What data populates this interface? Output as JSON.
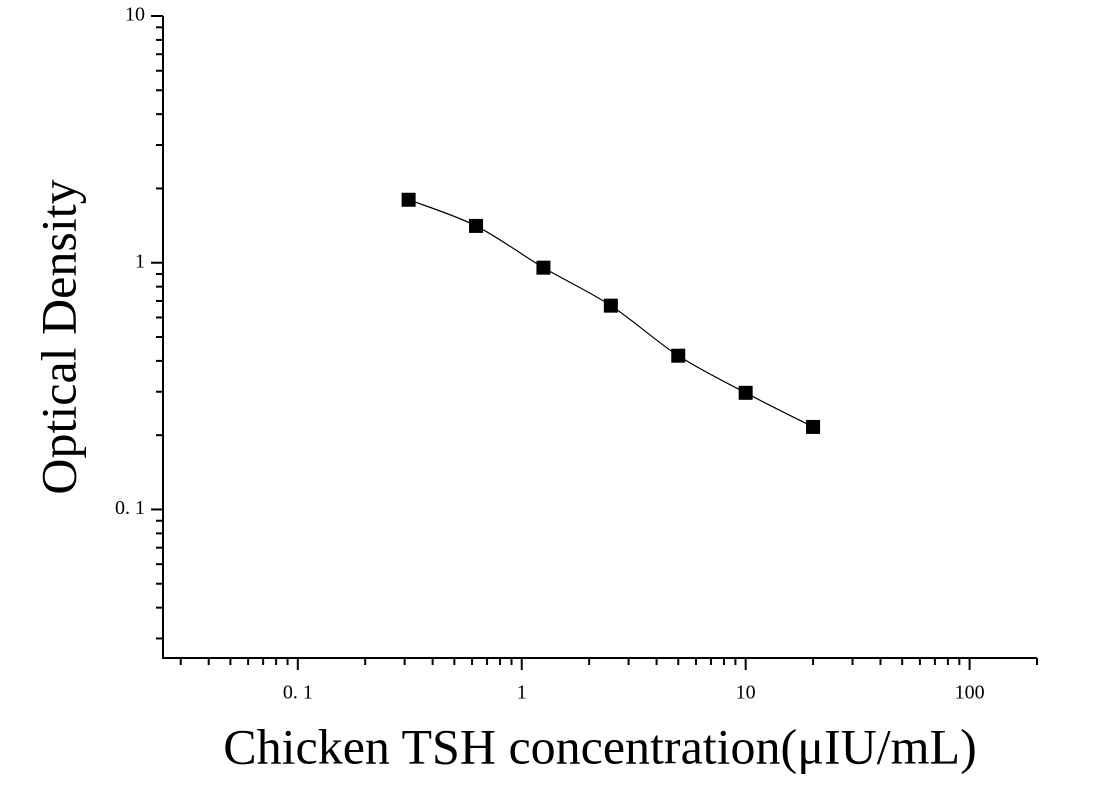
{
  "chart_data": {
    "type": "scatter",
    "x_label": "Chicken TSH concentration(μIU/mL)",
    "y_label": "Optical Density",
    "x": [
      0.3125,
      0.625,
      1.25,
      2.5,
      5,
      10,
      20
    ],
    "series": [
      {
        "color": "#000000",
        "values": [
          1.8,
          1.41,
          0.955,
          0.67,
          0.42,
          0.297,
          0.216
        ]
      }
    ],
    "xlim": [
      0.025,
      200
    ],
    "ylim": [
      0.025,
      10
    ],
    "xticks": [
      {
        "value": 0.1,
        "label": "0. 1"
      },
      1,
      10,
      100
    ],
    "yticks": [
      {
        "value": 0.1,
        "label": "0. 1"
      },
      1,
      10
    ],
    "xscale": "log",
    "yscale": "log",
    "minor_ticks": true,
    "fit_curve": true,
    "grid": false
  }
}
